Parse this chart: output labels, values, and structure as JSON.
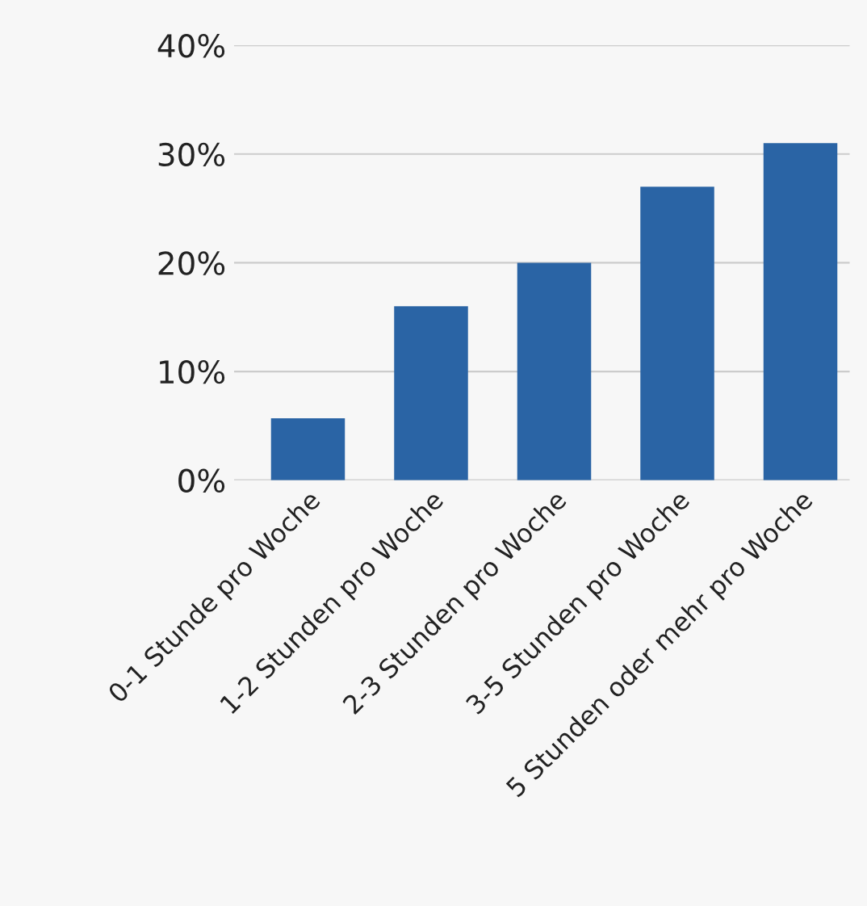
{
  "chart_data": {
    "type": "bar",
    "categories": [
      "0-1 Stunde pro Woche",
      "1-2 Stunden pro Woche",
      "2-3 Stunden pro Woche",
      "3-5 Stunden pro Woche",
      "5 Stunden oder mehr pro Woche"
    ],
    "values": [
      5.7,
      16,
      20,
      27,
      31
    ],
    "color": "#2a64a5",
    "ylim": [
      0,
      40
    ],
    "yticks": [
      {
        "value": 0,
        "label": "0%"
      },
      {
        "value": 10,
        "label": "10%"
      },
      {
        "value": 20,
        "label": "20%"
      },
      {
        "value": 30,
        "label": "30%"
      },
      {
        "value": 40,
        "label": "40%"
      }
    ],
    "grid": "y"
  }
}
